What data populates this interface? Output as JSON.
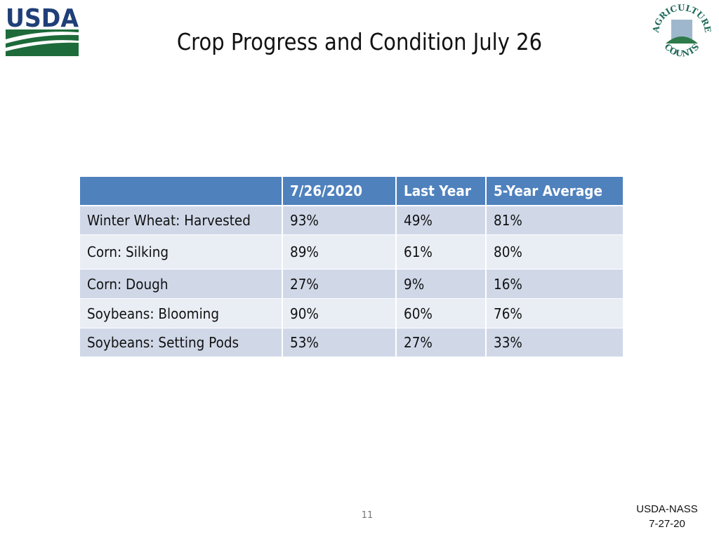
{
  "logo_left": "USDA",
  "logo_right": {
    "top": "AGRICULTURE",
    "bottom": "COUNTS"
  },
  "header": {
    "title": "Crop Progress and Condition July 26"
  },
  "table": {
    "columns": [
      "",
      "7/26/2020",
      "Last Year",
      "5-Year Average"
    ],
    "rows": [
      [
        "Winter Wheat: Harvested",
        "93%",
        "49%",
        "81%"
      ],
      [
        "Corn: Silking",
        "89%",
        "61%",
        "80%"
      ],
      [
        "Corn: Dough",
        "27%",
        "9%",
        "16%"
      ],
      [
        "Soybeans: Blooming",
        "90%",
        "60%",
        "76%"
      ],
      [
        "Soybeans: Setting Pods",
        "53%",
        "27%",
        "33%"
      ]
    ]
  },
  "footer": {
    "page": "11",
    "source": "USDA-NASS",
    "date": "7-27-20"
  }
}
